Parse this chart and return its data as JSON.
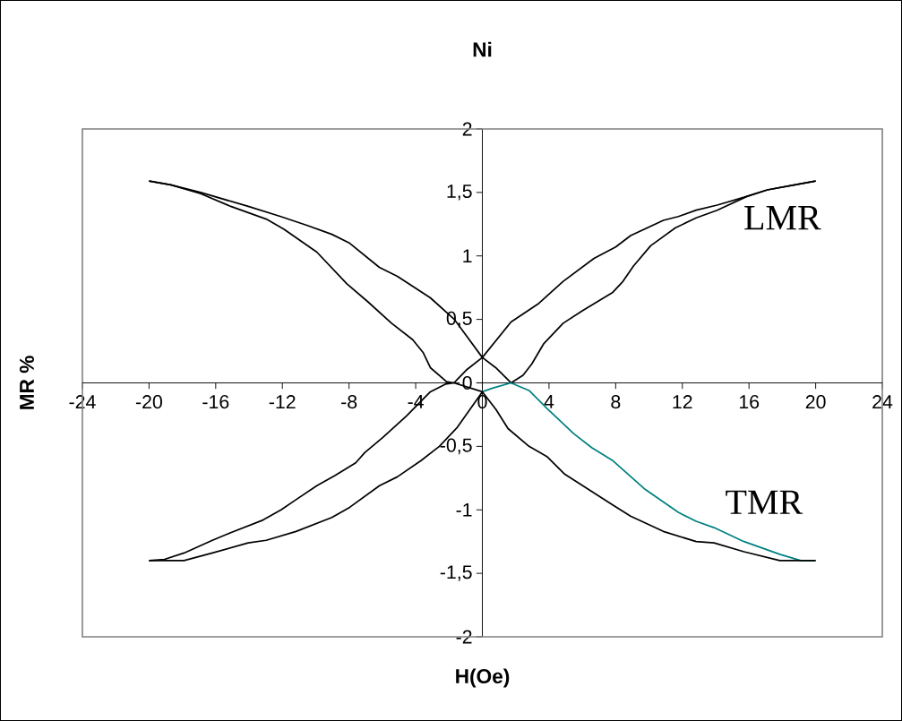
{
  "chart_data": {
    "type": "line",
    "title": "Ni",
    "xlabel": "H(Oe)",
    "ylabel": "MR %",
    "xlim": [
      -24,
      24
    ],
    "ylim": [
      -2,
      2
    ],
    "xticks": [
      -24,
      -20,
      -16,
      -12,
      -8,
      -4,
      0,
      4,
      8,
      12,
      16,
      20,
      24
    ],
    "yticks": [
      -2,
      {
        "value": -1.5,
        "label": "-1,5"
      },
      -1,
      {
        "value": -0.5,
        "label": "-0,5"
      },
      0,
      {
        "value": 0.5,
        "label": "0,5"
      },
      1,
      {
        "value": 1.5,
        "label": "1,5"
      },
      2
    ],
    "grid": false,
    "series": [
      {
        "color": "#000000",
        "x": [
          -20,
          -18.7,
          -16.9,
          -14.05,
          -12.1,
          -10.5,
          -9.03,
          -7.96,
          -6.18,
          -5.1,
          -3.12,
          -1.68,
          0,
          0.8,
          1.72,
          2.44,
          2.97,
          3.69,
          4.85,
          6.02,
          7.8,
          8.44,
          9.07,
          10.1,
          11.57,
          12.83,
          14.09,
          15.9,
          17.1,
          18.75,
          20
        ],
        "values": [
          1.59,
          1.56,
          1.5,
          1.39,
          1.31,
          1.24,
          1.17,
          1.1,
          0.91,
          0.84,
          0.67,
          0.5,
          0.2,
          0.12,
          0,
          0.06,
          0.15,
          0.31,
          0.47,
          0.57,
          0.71,
          0.8,
          0.92,
          1.08,
          1.22,
          1.3,
          1.36,
          1.47,
          1.52,
          1.56,
          1.59
        ]
      },
      {
        "color": "#000000",
        "x": [
          -20,
          -18.7,
          -16.9,
          -15.1,
          -12.97,
          -11.9,
          -9.93,
          -8.13,
          -6.88,
          -5.45,
          -4.18,
          -3.56,
          -3.12,
          -2.15,
          -1.7,
          -0.97,
          0,
          1.72,
          3.33,
          4.85,
          6.7,
          8.0,
          8.9,
          10.86,
          11.76,
          12.83,
          14.09,
          15.9,
          17.1,
          18.75,
          20
        ],
        "values": [
          1.59,
          1.56,
          1.49,
          1.39,
          1.29,
          1.21,
          1.03,
          0.78,
          0.64,
          0.47,
          0.34,
          0.24,
          0.12,
          0.01,
          0,
          0.1,
          0.2,
          0.48,
          0.62,
          0.8,
          0.98,
          1.07,
          1.16,
          1.28,
          1.31,
          1.36,
          1.4,
          1.47,
          1.52,
          1.56,
          1.59
        ]
      },
      {
        "color": "#000000",
        "x": [
          -20,
          -19.07,
          -17.9,
          -16.2,
          -15.1,
          -13.16,
          -12.08,
          -11.18,
          -9.93,
          -8.85,
          -7.6,
          -7.06,
          -5.97,
          -4.55,
          -3.12,
          -2.22,
          -1.7,
          0
        ],
        "values": [
          -1.4,
          -1.39,
          -1.34,
          -1.24,
          -1.18,
          -1.08,
          -1.0,
          -0.92,
          -0.81,
          -0.73,
          -0.63,
          -0.55,
          -0.43,
          -0.26,
          -0.07,
          -0.01,
          0,
          -0.07
        ]
      },
      {
        "color": "#008080",
        "x": [
          0,
          0.65,
          1.72,
          2.8,
          3.87,
          5.48,
          6.56,
          7.8,
          9.78,
          11.76,
          12.83,
          13.9,
          15.7,
          17.85,
          19.1,
          20
        ],
        "values": [
          -0.07,
          -0.04,
          0,
          -0.06,
          -0.2,
          -0.4,
          -0.51,
          -0.61,
          -0.84,
          -1.02,
          -1.09,
          -1.14,
          -1.25,
          -1.35,
          -1.4,
          -1.4
        ]
      },
      {
        "color": "#000000",
        "x": [
          -20,
          -17.9,
          -16.2,
          -14.05,
          -12.97,
          -11.18,
          -9.03,
          -7.96,
          -6.17,
          -5.1,
          -3.66,
          -2.58,
          -1.5,
          0,
          0.82,
          1.54,
          2.8,
          3.87,
          4.95,
          6.02,
          7.8,
          8.89,
          10.86,
          12.83,
          13.9,
          15.7,
          17.85,
          20
        ],
        "values": [
          -1.4,
          -1.4,
          -1.34,
          -1.26,
          -1.24,
          -1.17,
          -1.06,
          -0.98,
          -0.81,
          -0.74,
          -0.61,
          -0.5,
          -0.35,
          -0.07,
          -0.21,
          -0.36,
          -0.5,
          -0.58,
          -0.72,
          -0.81,
          -0.96,
          -1.05,
          -1.17,
          -1.25,
          -1.26,
          -1.33,
          -1.4,
          -1.4
        ]
      }
    ],
    "annotations": [
      "LMR",
      "TMR"
    ]
  }
}
